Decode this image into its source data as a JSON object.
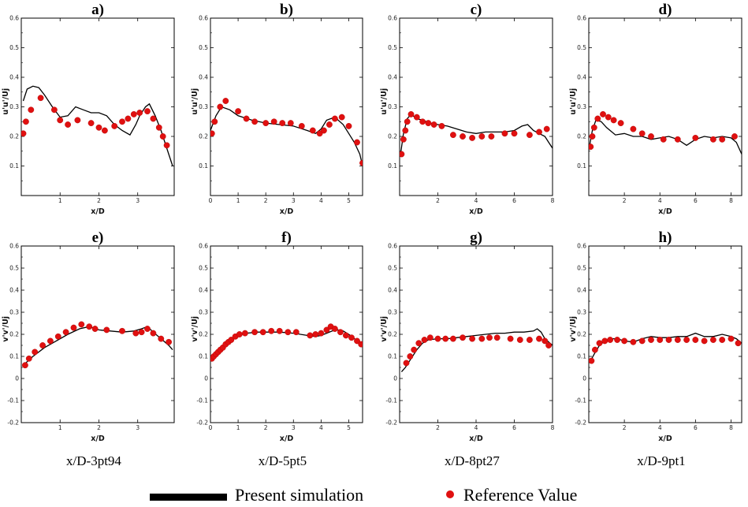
{
  "legend": {
    "line_label": "Present simulation",
    "marker_label": "Reference Value",
    "line_color": "#000000",
    "marker_color": "#e01010"
  },
  "chart_data": [
    {
      "type": "scatter",
      "panel": "a)",
      "xlabel": "x/D",
      "ylabel": "u'u'/Uj",
      "caption": "",
      "xlim": [
        0,
        3.94
      ],
      "ylim": [
        0,
        0.6
      ],
      "xticks": [
        1,
        2,
        3
      ],
      "yticks": [
        0.1,
        0.2,
        0.3,
        0.4,
        0.5,
        0.6
      ],
      "series": [
        {
          "name": "Present simulation",
          "x": [
            0.05,
            0.15,
            0.3,
            0.45,
            0.6,
            0.8,
            1.0,
            1.2,
            1.4,
            1.6,
            1.8,
            2.0,
            2.2,
            2.4,
            2.6,
            2.8,
            2.95,
            3.05,
            3.2,
            3.3,
            3.45,
            3.6,
            3.75,
            3.9
          ],
          "y": [
            0.32,
            0.36,
            0.37,
            0.365,
            0.34,
            0.3,
            0.265,
            0.27,
            0.3,
            0.29,
            0.28,
            0.28,
            0.27,
            0.24,
            0.22,
            0.205,
            0.24,
            0.27,
            0.3,
            0.31,
            0.27,
            0.22,
            0.16,
            0.1
          ]
        },
        {
          "name": "Reference Value",
          "x": [
            0.05,
            0.12,
            0.25,
            0.5,
            0.85,
            1.0,
            1.2,
            1.45,
            1.8,
            2.0,
            2.15,
            2.4,
            2.6,
            2.75,
            2.9,
            3.05,
            3.25,
            3.4,
            3.55,
            3.65,
            3.75
          ],
          "y": [
            0.21,
            0.25,
            0.29,
            0.33,
            0.29,
            0.255,
            0.24,
            0.255,
            0.245,
            0.23,
            0.22,
            0.235,
            0.25,
            0.26,
            0.275,
            0.28,
            0.285,
            0.26,
            0.23,
            0.2,
            0.17
          ]
        }
      ]
    },
    {
      "type": "scatter",
      "panel": "b)",
      "xlabel": "x/D",
      "ylabel": "u'u'/Uj",
      "caption": "",
      "xlim": [
        0,
        5.5
      ],
      "ylim": [
        0,
        0.6
      ],
      "xticks": [
        0,
        1,
        2,
        3,
        4,
        5
      ],
      "yticks": [
        0.1,
        0.2,
        0.3,
        0.4,
        0.5,
        0.6
      ],
      "series": [
        {
          "name": "Present simulation",
          "x": [
            0.0,
            0.2,
            0.4,
            0.7,
            1.0,
            1.5,
            2.0,
            2.5,
            3.0,
            3.5,
            3.8,
            4.0,
            4.2,
            4.5,
            4.8,
            5.0,
            5.2,
            5.4,
            5.5
          ],
          "y": [
            0.22,
            0.27,
            0.3,
            0.29,
            0.27,
            0.255,
            0.245,
            0.24,
            0.235,
            0.22,
            0.21,
            0.225,
            0.255,
            0.265,
            0.24,
            0.21,
            0.18,
            0.14,
            0.1
          ]
        },
        {
          "name": "Reference Value",
          "x": [
            0.05,
            0.15,
            0.35,
            0.55,
            1.0,
            1.3,
            1.6,
            2.0,
            2.3,
            2.6,
            2.9,
            3.3,
            3.7,
            3.95,
            4.1,
            4.3,
            4.5,
            4.75,
            5.0,
            5.3,
            5.5
          ],
          "y": [
            0.21,
            0.25,
            0.3,
            0.32,
            0.285,
            0.26,
            0.25,
            0.245,
            0.25,
            0.245,
            0.245,
            0.235,
            0.22,
            0.21,
            0.22,
            0.24,
            0.26,
            0.265,
            0.235,
            0.18,
            0.11
          ]
        }
      ]
    },
    {
      "type": "scatter",
      "panel": "c)",
      "xlabel": "x/D",
      "ylabel": "u'u'/Uj",
      "caption": "",
      "xlim": [
        0,
        8.0
      ],
      "ylim": [
        0,
        0.6
      ],
      "xticks": [
        2,
        4,
        6,
        8
      ],
      "yticks": [
        0.1,
        0.2,
        0.3,
        0.4,
        0.5,
        0.6
      ],
      "series": [
        {
          "name": "Present simulation",
          "x": [
            0.05,
            0.2,
            0.4,
            0.6,
            0.9,
            1.2,
            1.6,
            2.0,
            2.5,
            3.0,
            3.5,
            4.0,
            4.5,
            5.0,
            5.5,
            6.0,
            6.4,
            6.7,
            7.0,
            7.3,
            7.6,
            7.8,
            8.0
          ],
          "y": [
            0.14,
            0.21,
            0.26,
            0.275,
            0.26,
            0.255,
            0.245,
            0.24,
            0.235,
            0.225,
            0.215,
            0.21,
            0.215,
            0.215,
            0.215,
            0.22,
            0.235,
            0.24,
            0.22,
            0.21,
            0.2,
            0.18,
            0.16
          ]
        },
        {
          "name": "Reference Value",
          "x": [
            0.1,
            0.2,
            0.3,
            0.4,
            0.6,
            0.9,
            1.2,
            1.5,
            1.8,
            2.2,
            2.8,
            3.3,
            3.8,
            4.3,
            4.8,
            5.5,
            6.0,
            6.8,
            7.3,
            7.7
          ],
          "y": [
            0.14,
            0.19,
            0.22,
            0.25,
            0.275,
            0.265,
            0.25,
            0.245,
            0.24,
            0.235,
            0.205,
            0.2,
            0.195,
            0.2,
            0.2,
            0.21,
            0.21,
            0.205,
            0.215,
            0.225
          ]
        }
      ]
    },
    {
      "type": "scatter",
      "panel": "d)",
      "xlabel": "x/D",
      "ylabel": "u'u'/Uj",
      "caption": "",
      "xlim": [
        0,
        8.6
      ],
      "ylim": [
        0,
        0.6
      ],
      "xticks": [
        2,
        4,
        6,
        8
      ],
      "yticks": [
        0.1,
        0.2,
        0.3,
        0.4,
        0.5,
        0.6
      ],
      "series": [
        {
          "name": "Present simulation",
          "x": [
            0.05,
            0.2,
            0.4,
            0.7,
            1.0,
            1.5,
            2.0,
            2.5,
            3.0,
            3.5,
            4.0,
            4.5,
            5.0,
            5.5,
            6.0,
            6.5,
            7.0,
            7.5,
            8.0,
            8.3,
            8.6
          ],
          "y": [
            0.17,
            0.22,
            0.255,
            0.25,
            0.23,
            0.205,
            0.21,
            0.2,
            0.2,
            0.19,
            0.195,
            0.2,
            0.19,
            0.17,
            0.19,
            0.2,
            0.195,
            0.2,
            0.195,
            0.18,
            0.14
          ]
        },
        {
          "name": "Reference Value",
          "x": [
            0.1,
            0.2,
            0.3,
            0.5,
            0.8,
            1.1,
            1.4,
            1.8,
            2.5,
            3.0,
            3.5,
            4.2,
            5.0,
            6.0,
            7.0,
            7.5,
            8.2
          ],
          "y": [
            0.165,
            0.2,
            0.23,
            0.26,
            0.275,
            0.265,
            0.255,
            0.245,
            0.225,
            0.21,
            0.2,
            0.19,
            0.19,
            0.195,
            0.19,
            0.19,
            0.2
          ]
        }
      ]
    },
    {
      "type": "scatter",
      "panel": "e)",
      "xlabel": "x/D",
      "ylabel": "v'v'/Uj",
      "caption": "x/D-3pt94",
      "xlim": [
        0,
        3.94
      ],
      "ylim": [
        -0.2,
        0.6
      ],
      "xticks": [
        1,
        2,
        3
      ],
      "yticks": [
        -0.2,
        -0.1,
        0,
        0.1,
        0.2,
        0.3,
        0.4,
        0.5,
        0.6
      ],
      "series": [
        {
          "name": "Present simulation",
          "x": [
            0.05,
            0.3,
            0.6,
            0.9,
            1.2,
            1.5,
            1.75,
            2.0,
            2.3,
            2.6,
            2.9,
            3.1,
            3.25,
            3.4,
            3.6,
            3.8,
            3.9
          ],
          "y": [
            0.06,
            0.1,
            0.14,
            0.17,
            0.2,
            0.225,
            0.235,
            0.22,
            0.215,
            0.21,
            0.215,
            0.225,
            0.235,
            0.21,
            0.18,
            0.15,
            0.13
          ]
        },
        {
          "name": "Reference Value",
          "x": [
            0.1,
            0.2,
            0.35,
            0.55,
            0.75,
            0.95,
            1.15,
            1.35,
            1.55,
            1.75,
            1.9,
            2.2,
            2.6,
            2.95,
            3.1,
            3.25,
            3.4,
            3.6,
            3.8
          ],
          "y": [
            0.06,
            0.09,
            0.12,
            0.15,
            0.17,
            0.19,
            0.21,
            0.23,
            0.245,
            0.235,
            0.225,
            0.22,
            0.215,
            0.205,
            0.21,
            0.225,
            0.205,
            0.18,
            0.165
          ]
        }
      ]
    },
    {
      "type": "scatter",
      "panel": "f)",
      "xlabel": "x/D",
      "ylabel": "v'v'/Uj",
      "caption": "x/D-5pt5",
      "xlim": [
        0,
        5.5
      ],
      "ylim": [
        -0.2,
        0.6
      ],
      "xticks": [
        0,
        1,
        2,
        3,
        4,
        5
      ],
      "yticks": [
        -0.2,
        -0.1,
        0,
        0.1,
        0.2,
        0.3,
        0.4,
        0.5,
        0.6
      ],
      "series": [
        {
          "name": "Present simulation",
          "x": [
            0.05,
            0.2,
            0.4,
            0.6,
            0.8,
            1.0,
            1.3,
            1.7,
            2.0,
            2.5,
            3.0,
            3.5,
            3.8,
            4.0,
            4.2,
            4.4,
            4.6,
            4.8,
            5.0,
            5.2,
            5.5
          ],
          "y": [
            0.08,
            0.1,
            0.13,
            0.155,
            0.175,
            0.195,
            0.205,
            0.21,
            0.21,
            0.21,
            0.205,
            0.195,
            0.19,
            0.195,
            0.205,
            0.215,
            0.22,
            0.215,
            0.2,
            0.18,
            0.16
          ]
        },
        {
          "name": "Reference Value",
          "x": [
            0.05,
            0.12,
            0.2,
            0.28,
            0.36,
            0.45,
            0.55,
            0.65,
            0.75,
            0.9,
            1.05,
            1.25,
            1.6,
            1.9,
            2.2,
            2.5,
            2.8,
            3.1,
            3.6,
            3.8,
            4.0,
            4.2,
            4.35,
            4.5,
            4.7,
            4.9,
            5.1,
            5.3,
            5.45
          ],
          "y": [
            0.09,
            0.1,
            0.11,
            0.12,
            0.13,
            0.14,
            0.155,
            0.165,
            0.175,
            0.19,
            0.2,
            0.205,
            0.21,
            0.21,
            0.215,
            0.215,
            0.21,
            0.21,
            0.195,
            0.2,
            0.205,
            0.22,
            0.235,
            0.225,
            0.21,
            0.195,
            0.185,
            0.17,
            0.155
          ]
        }
      ]
    },
    {
      "type": "scatter",
      "panel": "g)",
      "xlabel": "x/D",
      "ylabel": "v'v'/Uj",
      "caption": "x/D-8pt27",
      "xlim": [
        0,
        8.0
      ],
      "ylim": [
        -0.2,
        0.6
      ],
      "xticks": [
        2,
        4,
        6,
        8
      ],
      "yticks": [
        -0.2,
        -0.1,
        0,
        0.1,
        0.2,
        0.3,
        0.4,
        0.5,
        0.6
      ],
      "series": [
        {
          "name": "Present simulation",
          "x": [
            0.1,
            0.3,
            0.6,
            0.9,
            1.2,
            1.5,
            2.0,
            2.5,
            3.0,
            3.5,
            4.0,
            4.5,
            5.0,
            5.5,
            6.0,
            6.5,
            7.0,
            7.2,
            7.4,
            7.6,
            7.8,
            8.0
          ],
          "y": [
            0.03,
            0.05,
            0.09,
            0.13,
            0.16,
            0.175,
            0.18,
            0.18,
            0.185,
            0.19,
            0.195,
            0.2,
            0.205,
            0.205,
            0.21,
            0.21,
            0.215,
            0.225,
            0.21,
            0.18,
            0.165,
            0.15
          ]
        },
        {
          "name": "Reference Value",
          "x": [
            0.35,
            0.55,
            0.75,
            1.0,
            1.3,
            1.6,
            2.0,
            2.4,
            2.8,
            3.3,
            3.8,
            4.3,
            4.7,
            5.1,
            5.8,
            6.3,
            6.8,
            7.3,
            7.6,
            7.8
          ],
          "y": [
            0.07,
            0.1,
            0.13,
            0.16,
            0.175,
            0.185,
            0.18,
            0.18,
            0.18,
            0.185,
            0.18,
            0.18,
            0.185,
            0.185,
            0.18,
            0.175,
            0.175,
            0.18,
            0.17,
            0.15
          ]
        }
      ]
    },
    {
      "type": "scatter",
      "panel": "h)",
      "xlabel": "x/D",
      "ylabel": "v'v'/Uj",
      "caption": "x/D-9pt1",
      "xlim": [
        0,
        8.6
      ],
      "ylim": [
        -0.2,
        0.6
      ],
      "xticks": [
        2,
        4,
        6,
        8
      ],
      "yticks": [
        -0.2,
        -0.1,
        0,
        0.1,
        0.2,
        0.3,
        0.4,
        0.5,
        0.6
      ],
      "series": [
        {
          "name": "Present simulation",
          "x": [
            0.1,
            0.3,
            0.6,
            0.9,
            1.2,
            1.6,
            2.0,
            2.5,
            3.0,
            3.5,
            4.0,
            4.5,
            5.0,
            5.5,
            6.0,
            6.5,
            7.0,
            7.5,
            8.0,
            8.3,
            8.6
          ],
          "y": [
            0.08,
            0.11,
            0.15,
            0.17,
            0.18,
            0.18,
            0.17,
            0.165,
            0.18,
            0.19,
            0.185,
            0.185,
            0.19,
            0.19,
            0.205,
            0.19,
            0.19,
            0.2,
            0.19,
            0.18,
            0.16
          ]
        },
        {
          "name": "Reference Value",
          "x": [
            0.15,
            0.35,
            0.6,
            0.9,
            1.2,
            1.6,
            2.0,
            2.5,
            3.0,
            3.5,
            4.0,
            4.5,
            5.0,
            5.5,
            6.0,
            6.5,
            7.0,
            7.5,
            8.0,
            8.4
          ],
          "y": [
            0.08,
            0.13,
            0.16,
            0.17,
            0.175,
            0.175,
            0.17,
            0.165,
            0.17,
            0.175,
            0.175,
            0.175,
            0.175,
            0.175,
            0.175,
            0.17,
            0.175,
            0.175,
            0.18,
            0.16
          ]
        }
      ]
    }
  ]
}
